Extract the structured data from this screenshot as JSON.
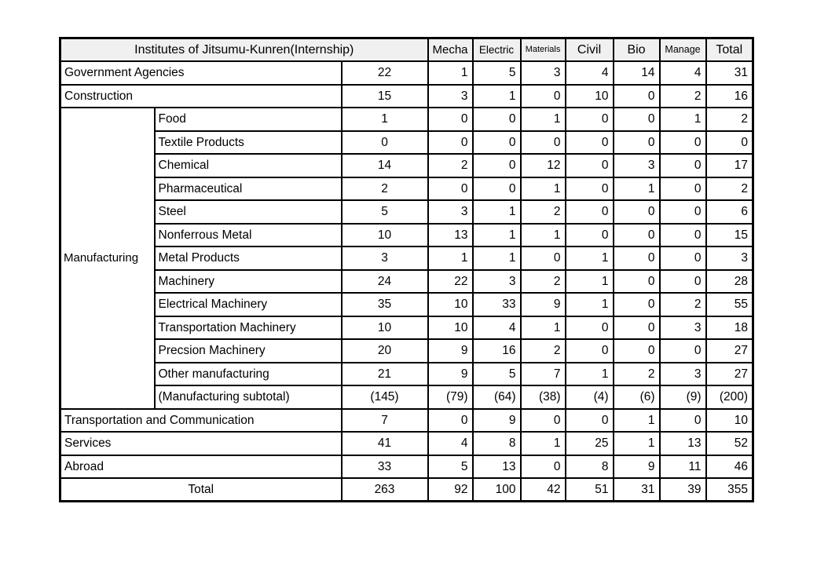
{
  "table": {
    "title": "Institutes of Jitsumu-Kunren(Internship)",
    "column_headers": [
      "Mecha",
      "Electric",
      "Materials",
      "Civil",
      "Bio",
      "Manage",
      "Total"
    ],
    "rows": [
      {
        "type": "simple",
        "label": "Government Agencies",
        "count": "22",
        "values": [
          "1",
          "5",
          "3",
          "4",
          "14",
          "4",
          "31"
        ]
      },
      {
        "type": "simple",
        "label": "Construction",
        "count": "15",
        "values": [
          "3",
          "1",
          "0",
          "10",
          "0",
          "2",
          "16"
        ]
      },
      {
        "type": "group-start",
        "group_label": "Manufacturing",
        "group_span": 13,
        "label": "Food",
        "count": "1",
        "values": [
          "0",
          "0",
          "1",
          "0",
          "0",
          "1",
          "2"
        ]
      },
      {
        "type": "sub",
        "label": "Textile Products",
        "count": "0",
        "values": [
          "0",
          "0",
          "0",
          "0",
          "0",
          "0",
          "0"
        ]
      },
      {
        "type": "sub",
        "label": "Chemical",
        "count": "14",
        "values": [
          "2",
          "0",
          "12",
          "0",
          "3",
          "0",
          "17"
        ]
      },
      {
        "type": "sub",
        "label": "Pharmaceutical",
        "count": "2",
        "values": [
          "0",
          "0",
          "1",
          "0",
          "1",
          "0",
          "2"
        ]
      },
      {
        "type": "sub",
        "label": "Steel",
        "count": "5",
        "values": [
          "3",
          "1",
          "2",
          "0",
          "0",
          "0",
          "6"
        ]
      },
      {
        "type": "sub",
        "label": "Nonferrous Metal",
        "count": "10",
        "values": [
          "13",
          "1",
          "1",
          "0",
          "0",
          "0",
          "15"
        ]
      },
      {
        "type": "sub",
        "label": "Metal Products",
        "count": "3",
        "values": [
          "1",
          "1",
          "0",
          "1",
          "0",
          "0",
          "3"
        ]
      },
      {
        "type": "sub",
        "label": "Machinery",
        "count": "24",
        "values": [
          "22",
          "3",
          "2",
          "1",
          "0",
          "0",
          "28"
        ]
      },
      {
        "type": "sub",
        "label": "Electrical Machinery",
        "count": "35",
        "values": [
          "10",
          "33",
          "9",
          "1",
          "0",
          "2",
          "55"
        ]
      },
      {
        "type": "sub",
        "label": "Transportation Machinery",
        "count": "10",
        "values": [
          "10",
          "4",
          "1",
          "0",
          "0",
          "3",
          "18"
        ]
      },
      {
        "type": "sub",
        "label": "Precsion Machinery",
        "count": "20",
        "values": [
          "9",
          "16",
          "2",
          "0",
          "0",
          "0",
          "27"
        ]
      },
      {
        "type": "sub",
        "label": "Other manufacturing",
        "count": "21",
        "values": [
          "9",
          "5",
          "7",
          "1",
          "2",
          "3",
          "27"
        ]
      },
      {
        "type": "sub",
        "label": "(Manufacturing subtotal)",
        "count": "(145)",
        "values": [
          "(79)",
          "(64)",
          "(38)",
          "(4)",
          "(6)",
          "(9)",
          "(200)"
        ]
      },
      {
        "type": "simple",
        "label": "Transportation and Communication",
        "count": "7",
        "values": [
          "0",
          "9",
          "0",
          "0",
          "1",
          "0",
          "10"
        ]
      },
      {
        "type": "simple",
        "label": "Services",
        "count": "41",
        "values": [
          "4",
          "8",
          "1",
          "25",
          "1",
          "13",
          "52"
        ]
      },
      {
        "type": "simple",
        "label": "Abroad",
        "count": "33",
        "values": [
          "5",
          "13",
          "0",
          "8",
          "9",
          "11",
          "46"
        ]
      },
      {
        "type": "total",
        "label": "Total",
        "count": "263",
        "values": [
          "92",
          "100",
          "42",
          "51",
          "31",
          "39",
          "355"
        ]
      }
    ]
  }
}
